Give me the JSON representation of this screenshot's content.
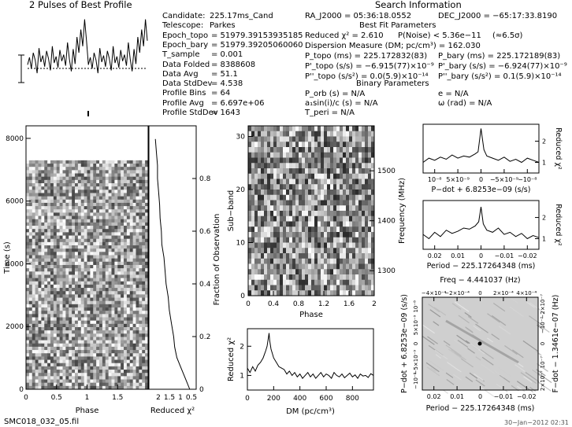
{
  "header": {
    "pulses_title": "2 Pulses of Best Profile",
    "search_title": "Search Information",
    "best_fit_title": "Best Fit Parameters",
    "binary_title": "Binary Parameters"
  },
  "candidate_info": [
    {
      "label": "Candidate:",
      "value": "225.17ms_Cand"
    },
    {
      "label": "Telescope:",
      "value": "Parkes"
    },
    {
      "label": "Epoch_topo",
      "value": "= 51979.39153935185"
    },
    {
      "label": "Epoch_bary",
      "value": "= 51979.39205060060"
    },
    {
      "label": "T_sample",
      "value": "= 0.001"
    },
    {
      "label": "Data Folded",
      "value": "= 8388608"
    },
    {
      "label": "Data Avg",
      "value": "= 51.1"
    },
    {
      "label": "Data StdDev",
      "value": "= 4.538"
    },
    {
      "label": "Profile Bins",
      "value": "= 64"
    },
    {
      "label": "Profile Avg",
      "value": "= 6.697e+06"
    },
    {
      "label": "Profile StdDev",
      "value": "= 1643"
    }
  ],
  "search_info": {
    "ra": "RA_J2000 = 05:36:18.0552",
    "dec": "DEC_J2000 = −65:17:33.8190",
    "reduced_chi2": "Reduced χ² = 2.610",
    "p_noise": "P(Noise) < 5.36e−11",
    "sigma": "(≈6.5σ)",
    "dm": "Dispersion Measure (DM; pc/cm³) = 162.030",
    "p_topo": "P_topo (ms) = 225.172832(83)",
    "p_bary": "P_bary (ms) = 225.172189(83)",
    "pdot_topo": "P'_topo (s/s) = −6.915(77)×10⁻⁹",
    "pdot_bary": "P'_bary (s/s) = −6.924(77)×10⁻⁹",
    "pddot_topo": "P''_topo (s/s²) = 0.0(5.9)×10⁻¹⁴",
    "pddot_bary": "P''_bary (s/s²) = 0.1(5.9)×10⁻¹⁴",
    "p_orb": "P_orb (s) = N/A",
    "e": "e = N/A",
    "asini": "a₁sin(i)/c (s) = N/A",
    "omega": "ω (rad) = N/A",
    "t_peri": "T_peri = N/A"
  },
  "footer": {
    "filename": "SMC018_032_05.fil",
    "date": "30−Jan−2012 02:31"
  },
  "chart_data": [
    {
      "id": "profile",
      "type": "line",
      "title": "2 Pulses of Best Profile",
      "series": [
        {
          "values": [
            0.42,
            0.5,
            0.38,
            0.55,
            0.47,
            0.33,
            0.6,
            0.45,
            0.52,
            0.4,
            0.57,
            0.49,
            0.36,
            0.62,
            0.44,
            0.51,
            0.39,
            0.58,
            0.46,
            0.53,
            0.41,
            0.66,
            0.48,
            0.35,
            0.59,
            0.43,
            0.72,
            0.55,
            0.8,
            0.62,
            0.91,
            0.68,
            0.42,
            0.5,
            0.38,
            0.55,
            0.47,
            0.33,
            0.6,
            0.45,
            0.52,
            0.4,
            0.57,
            0.49,
            0.36,
            0.62,
            0.44,
            0.51,
            0.39,
            0.58,
            0.46,
            0.53,
            0.41,
            0.66,
            0.48,
            0.35,
            0.59,
            0.43,
            0.72,
            0.55,
            0.8,
            0.62,
            0.91,
            0.68
          ]
        }
      ]
    },
    {
      "id": "time_phase",
      "type": "heatmap",
      "xlabel": "Phase",
      "ylabel": "Time (s)",
      "x_ticks": [
        "0",
        "0.5",
        "1",
        "1.5"
      ],
      "y_ticks": [
        "0",
        "2000",
        "4000",
        "6000",
        "8000"
      ],
      "xlim": [
        0,
        2
      ],
      "ylim": [
        0,
        8400
      ],
      "data_extent": [
        0,
        7300
      ]
    },
    {
      "id": "chi2_time",
      "type": "line",
      "xlabel": "Reduced χ²",
      "ylabel": "Fraction of Observation",
      "x_ticks": [
        "2",
        "1.5",
        "1",
        "0.5"
      ],
      "y_ticks": [
        "0",
        "0.2",
        "0.4",
        "0.6",
        "0.8"
      ],
      "x": [
        0.3,
        0.5,
        0.7,
        0.9,
        1.0,
        1.05,
        1.15,
        1.25,
        1.3,
        1.4,
        1.45,
        1.5,
        1.6,
        1.62,
        1.68,
        1.7,
        1.75,
        1.8,
        1.8,
        1.85,
        1.9
      ],
      "y": [
        0.0,
        0.04,
        0.08,
        0.12,
        0.16,
        0.2,
        0.25,
        0.3,
        0.35,
        0.4,
        0.45,
        0.5,
        0.55,
        0.6,
        0.65,
        0.7,
        0.75,
        0.8,
        0.85,
        0.9,
        0.95
      ]
    },
    {
      "id": "subband_phase",
      "type": "heatmap",
      "xlabel": "Phase",
      "ylabel": "Sub−band",
      "right_label": "Frequency (MHz)",
      "x_ticks": [
        "0",
        "0.4",
        "0.8",
        "1.2",
        "1.6",
        "2"
      ],
      "y_ticks": [
        "0",
        "10",
        "20",
        "30"
      ],
      "right_ticks": [
        "1300",
        "1400",
        "1500"
      ]
    },
    {
      "id": "dm_chi2",
      "type": "line",
      "xlabel": "DM (pc/cm³)",
      "ylabel": "Reduced χ²",
      "x_ticks": [
        "0",
        "200",
        "400",
        "600",
        "800"
      ],
      "y_ticks": [
        "1",
        "2"
      ],
      "xlim": [
        0,
        960
      ],
      "ylim": [
        0.5,
        2.6
      ],
      "x": [
        0,
        20,
        40,
        60,
        80,
        100,
        120,
        140,
        150,
        160,
        165,
        170,
        180,
        190,
        200,
        220,
        240,
        260,
        280,
        300,
        320,
        340,
        360,
        380,
        400,
        420,
        440,
        460,
        480,
        500,
        520,
        540,
        560,
        580,
        600,
        620,
        640,
        660,
        680,
        700,
        720,
        740,
        760,
        780,
        800,
        820,
        840,
        860,
        880,
        900,
        920,
        940,
        960
      ],
      "y": [
        1.25,
        1.1,
        1.3,
        1.15,
        1.35,
        1.45,
        1.6,
        1.85,
        2.0,
        2.3,
        2.45,
        2.2,
        1.9,
        1.75,
        1.6,
        1.45,
        1.3,
        1.25,
        1.2,
        1.05,
        1.15,
        1.0,
        1.1,
        0.95,
        1.05,
        0.9,
        1.0,
        1.1,
        0.95,
        1.05,
        0.9,
        1.0,
        1.1,
        0.95,
        1.05,
        1.0,
        0.9,
        1.1,
        1.0,
        0.95,
        1.05,
        0.92,
        1.0,
        1.08,
        0.95,
        1.02,
        0.9,
        1.05,
        0.98,
        1.0,
        0.93,
        1.06,
        1.0
      ]
    },
    {
      "id": "pdot_chi2",
      "type": "line",
      "xlabel": "P−dot + 6.8253e−09 (s/s)",
      "ylabel": "Reduced χ²",
      "x_ticks": [
        "10⁻⁸",
        "5×10⁻⁹",
        "0",
        "−5×10⁻⁹",
        "−10⁻⁸"
      ],
      "y_ticks": [
        "1",
        "2"
      ],
      "xlim": [
        -1,
        1
      ],
      "ylim": [
        0.5,
        2.8
      ],
      "x": [
        -1,
        -0.9,
        -0.8,
        -0.7,
        -0.6,
        -0.5,
        -0.4,
        -0.3,
        -0.2,
        -0.1,
        -0.05,
        0,
        0.05,
        0.1,
        0.2,
        0.3,
        0.4,
        0.5,
        0.6,
        0.7,
        0.8,
        0.9,
        1
      ],
      "y": [
        1.0,
        1.2,
        1.1,
        1.25,
        1.15,
        1.35,
        1.2,
        1.3,
        1.25,
        1.4,
        1.5,
        2.6,
        1.6,
        1.3,
        1.2,
        1.1,
        1.25,
        1.05,
        1.15,
        1.0,
        1.2,
        1.1,
        1.0
      ]
    },
    {
      "id": "period_chi2",
      "type": "line",
      "xlabel": "Period − 225.17264348 (ms)",
      "ylabel": "Reduced χ²",
      "x_ticks": [
        "0.02",
        "0.01",
        "0",
        "−0.01",
        "−0.02"
      ],
      "y_ticks": [
        "1",
        "2"
      ],
      "xlim": [
        0.025,
        -0.025
      ],
      "ylim": [
        0.5,
        2.8
      ],
      "x": [
        0.025,
        0.0225,
        0.02,
        0.0175,
        0.015,
        0.0125,
        0.01,
        0.0075,
        0.005,
        0.0025,
        0.001,
        0,
        -0.001,
        -0.0025,
        -0.005,
        -0.0075,
        -0.01,
        -0.0125,
        -0.015,
        -0.0175,
        -0.02,
        -0.0225,
        -0.025
      ],
      "y": [
        1.2,
        1.0,
        1.3,
        1.1,
        1.4,
        1.25,
        1.35,
        1.5,
        1.45,
        1.6,
        1.8,
        2.5,
        1.7,
        1.4,
        1.3,
        1.5,
        1.2,
        1.3,
        1.1,
        1.25,
        1.0,
        1.15,
        1.05
      ]
    },
    {
      "id": "pp_plane",
      "type": "heatmap",
      "title": "Freq − 4.441037 (Hz)",
      "xlabel": "Period − 225.17264348 (ms)",
      "ylabel": "P−dot + 6.8253e−09 (s/s)",
      "right_label": "F−dot − 1.3461e−07 (Hz)",
      "x_ticks": [
        "0.02",
        "0.01",
        "0",
        "−0.01",
        "−0.02"
      ],
      "top_ticks": [
        "−4×10⁻⁴",
        "−2×10⁻⁴",
        "0",
        "2×10⁻⁴",
        "4×10⁻⁴"
      ],
      "y_ticks": [
        "10⁻⁸",
        "5×10⁻⁹",
        "0",
        "−5×10⁻⁹",
        "−10⁻⁸"
      ],
      "right_ticks": [
        "−2×10⁻⁷",
        "−10⁻⁷",
        "0",
        "10⁻⁷",
        "2×10⁻⁷"
      ]
    }
  ]
}
